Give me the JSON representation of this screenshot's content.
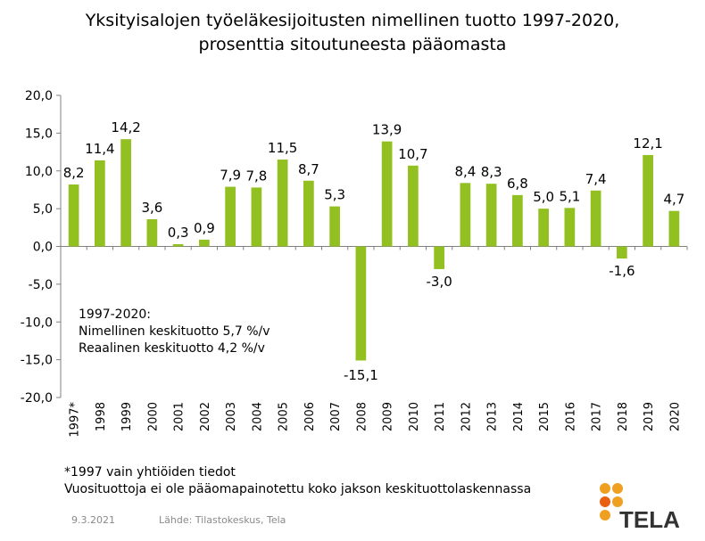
{
  "chart_data": {
    "type": "bar",
    "title": "Yksityisalojen työeläkesijoitusten nimellinen tuotto 1997-2020,",
    "subtitle": "prosenttia sitoutuneesta pääomasta",
    "categories": [
      "1997*",
      "1998",
      "1999",
      "2000",
      "2001",
      "2002",
      "2003",
      "2004",
      "2005",
      "2006",
      "2007",
      "2008",
      "2009",
      "2010",
      "2011",
      "2012",
      "2013",
      "2014",
      "2015",
      "2016",
      "2017",
      "2018",
      "2019",
      "2020"
    ],
    "values": [
      8.2,
      11.4,
      14.2,
      3.6,
      0.3,
      0.9,
      7.9,
      7.8,
      11.5,
      8.7,
      5.3,
      -15.1,
      13.9,
      10.7,
      -3.0,
      8.4,
      8.3,
      6.8,
      5.0,
      5.1,
      7.4,
      -1.6,
      12.1,
      4.7
    ],
    "value_labels": [
      "8,2",
      "11,4",
      "14,2",
      "3,6",
      "0,3",
      "0,9",
      "7,9",
      "7,8",
      "11,5",
      "8,7",
      "5,3",
      "-15,1",
      "13,9",
      "10,7",
      "-3,0",
      "8,4",
      "8,3",
      "6,8",
      "5,0",
      "5,1",
      "7,4",
      "-1,6",
      "12,1",
      "4,7"
    ],
    "ylim": [
      -20,
      20
    ],
    "yticks": [
      20,
      15,
      10,
      5,
      0,
      -5,
      -10,
      -15,
      -20
    ],
    "ytick_labels": [
      "20,0",
      "15,0",
      "10,0",
      "5,0",
      "0,0",
      "-5,0",
      "-10,0",
      "-15,0",
      "-20,0"
    ],
    "grid": false,
    "bar_color": "#92c020",
    "xlabel": "",
    "ylabel": ""
  },
  "annotation": {
    "line1": "1997-2020:",
    "line2": "Nimellinen keskituotto 5,7 %/v",
    "line3": "Reaalinen keskituotto 4,2 %/v"
  },
  "footnotes": {
    "line1": "*1997 vain yhtiöiden tiedot",
    "line2": "Vuosituottoja ei ole pääomapainotettu koko jakson keskituottolaskennassa"
  },
  "date": "9.3.2021",
  "source": "Lähde: Tilastokeskus, Tela",
  "logo": {
    "text": "TELA",
    "dot_colors": [
      "#f0a020",
      "#e86010"
    ]
  }
}
